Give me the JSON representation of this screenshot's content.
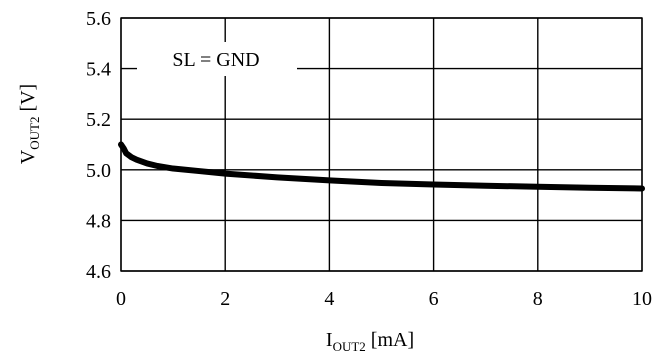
{
  "chart_data": {
    "type": "line",
    "title": "",
    "xlabel": {
      "main": "I",
      "sub": "OUT2",
      "unit": " [mA]"
    },
    "ylabel": {
      "main": "V",
      "sub": "OUT2",
      "unit": " [V]"
    },
    "xlim": [
      0,
      10
    ],
    "ylim": [
      4.6,
      5.6
    ],
    "xticks": [
      0,
      2,
      4,
      6,
      8,
      10
    ],
    "yticks": [
      4.6,
      4.8,
      5.0,
      5.2,
      5.4,
      5.6
    ],
    "xtick_labels": [
      "0",
      "2",
      "4",
      "6",
      "8",
      "10"
    ],
    "ytick_labels": [
      "4.6",
      "4.8",
      "5.0",
      "5.2",
      "5.4",
      "5.6"
    ],
    "grid": true,
    "annotation": "SL = GND",
    "series": [
      {
        "color": "#000000",
        "x": [
          0,
          0.05,
          0.1,
          0.2,
          0.3,
          0.5,
          0.7,
          1.0,
          1.5,
          2.0,
          3.0,
          4.0,
          5.0,
          6.0,
          7.0,
          8.0,
          9.0,
          10.0
        ],
        "y": [
          5.1,
          5.085,
          5.065,
          5.05,
          5.04,
          5.025,
          5.015,
          5.005,
          4.995,
          4.985,
          4.97,
          4.958,
          4.948,
          4.942,
          4.937,
          4.933,
          4.929,
          4.926
        ]
      }
    ]
  }
}
